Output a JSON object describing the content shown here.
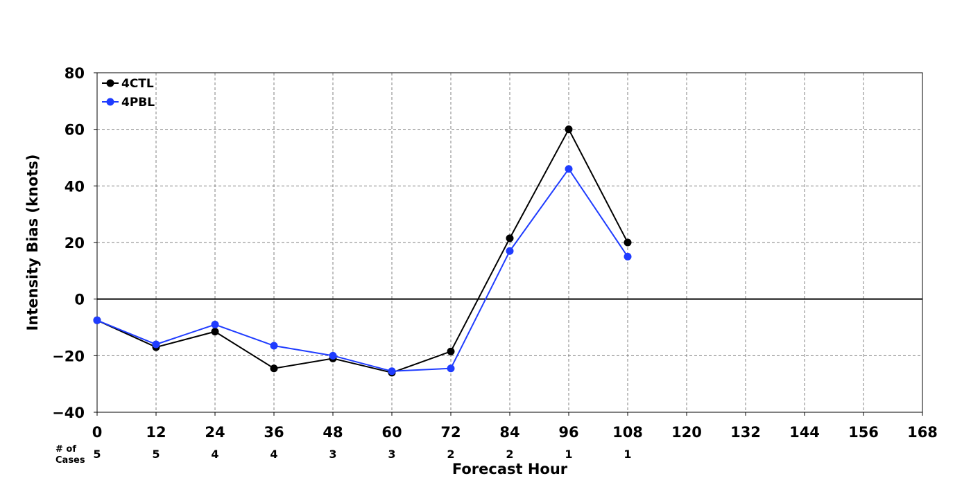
{
  "chart_data": {
    "type": "line",
    "xlabel": "Forecast Hour",
    "ylabel": "Intensity Bias (knots)",
    "xlim": [
      0,
      168
    ],
    "ylim": [
      -40,
      80
    ],
    "x_ticks": [
      0,
      12,
      24,
      36,
      48,
      60,
      72,
      84,
      96,
      108,
      120,
      132,
      144,
      156,
      168
    ],
    "y_ticks": [
      -40,
      -20,
      0,
      20,
      40,
      60,
      80
    ],
    "y_tick_labels": [
      "−40",
      "−20",
      "0",
      "20",
      "40",
      "60",
      "80"
    ],
    "grid": true,
    "legend_position": "top-left",
    "cases_title_line1": "# of",
    "cases_title_line2": "Cases",
    "cases": [
      {
        "x": 0,
        "n": "5"
      },
      {
        "x": 12,
        "n": "5"
      },
      {
        "x": 24,
        "n": "4"
      },
      {
        "x": 36,
        "n": "4"
      },
      {
        "x": 48,
        "n": "3"
      },
      {
        "x": 60,
        "n": "3"
      },
      {
        "x": 72,
        "n": "2"
      },
      {
        "x": 84,
        "n": "2"
      },
      {
        "x": 96,
        "n": "1"
      },
      {
        "x": 108,
        "n": "1"
      }
    ],
    "x": [
      0,
      12,
      24,
      36,
      48,
      60,
      72,
      84,
      96,
      108
    ],
    "series": [
      {
        "name": "4CTL",
        "color": "#000000",
        "values": [
          -7.5,
          -17,
          -11.5,
          -24.5,
          -21,
          -26,
          -18.5,
          21.5,
          60,
          20
        ]
      },
      {
        "name": "4PBL",
        "color": "#1f3cff",
        "values": [
          -7.5,
          -16,
          -9,
          -16.5,
          -20,
          -25.5,
          -24.5,
          17,
          46,
          15
        ]
      }
    ]
  }
}
